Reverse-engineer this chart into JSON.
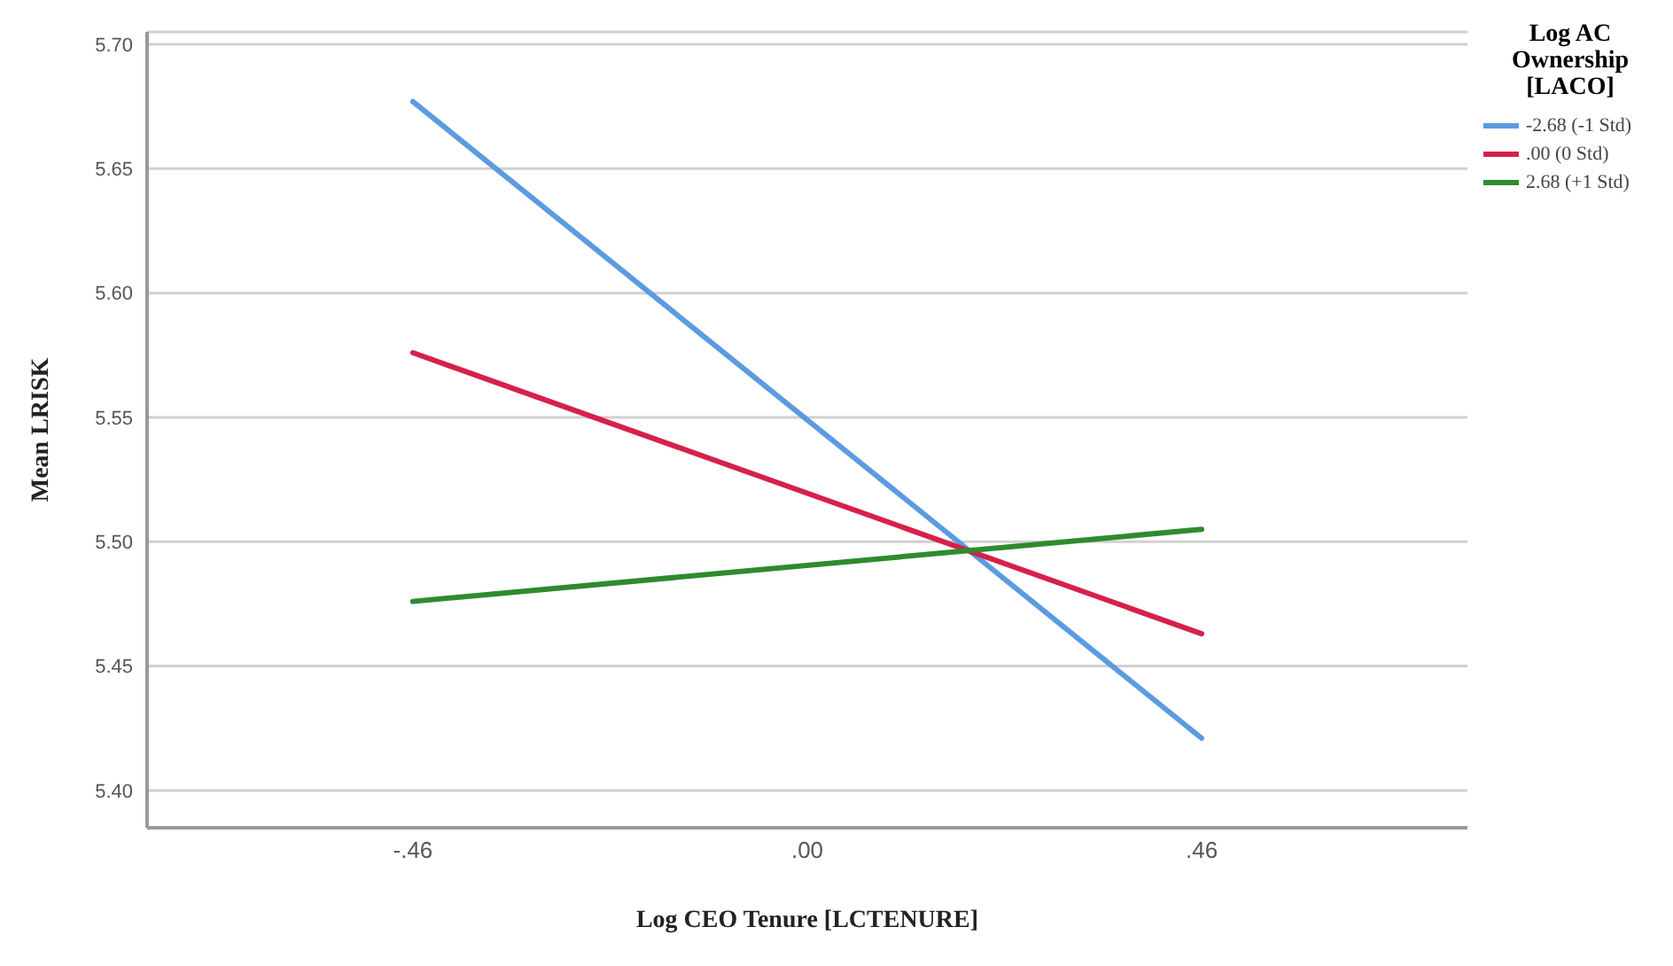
{
  "chart_data": {
    "type": "line",
    "xlabel": "Log CEO Tenure [LCTENURE]",
    "ylabel": "Mean LRISK",
    "legend_title": "Log AC Ownership [LACO]",
    "x": [
      -0.46,
      0.46
    ],
    "series": [
      {
        "name": "-2.68 (-1 Std)",
        "color": "#5b9be0",
        "values": [
          5.677,
          5.421
        ]
      },
      {
        "name": ".00 (0 Std)",
        "color": "#d6214a",
        "values": [
          5.576,
          5.463
        ]
      },
      {
        "name": "2.68 (+1 Std)",
        "color": "#2e8b2e",
        "values": [
          5.476,
          5.505
        ]
      }
    ],
    "xlim": [
      -0.77,
      0.77
    ],
    "xticks": [
      {
        "value": -0.46,
        "label": "-.46"
      },
      {
        "value": 0,
        "label": ".00"
      },
      {
        "value": 0.46,
        "label": ".46"
      }
    ],
    "ylim": [
      5.385,
      5.705
    ],
    "yticks": [
      {
        "value": 5.4,
        "label": "5.40"
      },
      {
        "value": 5.45,
        "label": "5.45"
      },
      {
        "value": 5.5,
        "label": "5.50"
      },
      {
        "value": 5.55,
        "label": "5.55"
      },
      {
        "value": 5.6,
        "label": "5.60"
      },
      {
        "value": 5.65,
        "label": "5.65"
      },
      {
        "value": 5.7,
        "label": "5.70"
      }
    ],
    "grid": "y",
    "legend": "top right",
    "marker": "none",
    "line_style": "solid"
  }
}
